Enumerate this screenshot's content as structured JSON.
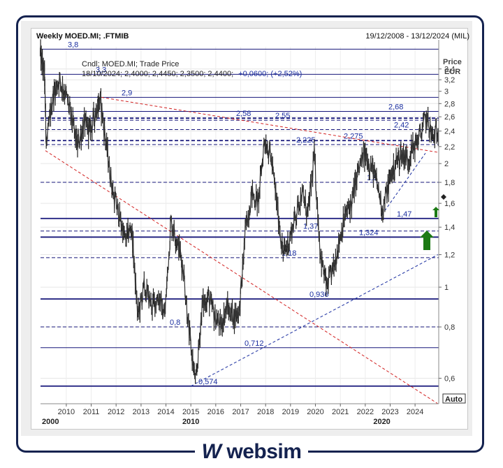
{
  "header": {
    "title": "Weekly MOED.MI; .FTMIB",
    "date_range": "19/12/2008 - 13/12/2024 (MIL)"
  },
  "info": {
    "line1": "Cndl; MOED.MI; Trade Price",
    "line2_prefix": "18/10/2024; 2,4000; 2,4450; 2,3500; 2,4400;",
    "line2_change": "+0,0600; (+2,52%)"
  },
  "axis": {
    "price_label": "Price",
    "currency_label": "EUR",
    "auto_label": "Auto",
    "y_ticks": [
      "0,6",
      "0,8",
      "1",
      "1,2",
      "1,4",
      "1,6",
      "1,8",
      "2",
      "2,2",
      "2,4",
      "2,6",
      "2,8",
      "3",
      "3,2",
      "3,4"
    ],
    "x_ticks": [
      "2010",
      "2011",
      "2012",
      "2013",
      "2014",
      "2015",
      "2016",
      "2017",
      "2018",
      "2019",
      "2020",
      "2021",
      "2022",
      "2023",
      "2024"
    ],
    "decades": [
      "2000",
      "2010",
      "2020"
    ]
  },
  "branding": {
    "logo_text": "websim",
    "logo_mark": "W"
  },
  "chart_data": {
    "type": "line",
    "ylim": [
      0.52,
      3.85
    ],
    "y_scale": "log",
    "xlim": [
      "2008-12-19",
      "2024-12-13"
    ],
    "grid": true,
    "levels": [
      {
        "label": "3,8",
        "value": 3.8,
        "style": "solid"
      },
      {
        "label": "3,3",
        "value": 3.3,
        "style": "solid"
      },
      {
        "label": "2,9",
        "value": 2.9,
        "style": "solid"
      },
      {
        "label": "2,68",
        "value": 2.68,
        "style": "solid"
      },
      {
        "label": "2,58",
        "value": 2.58,
        "style": "dashed-bold"
      },
      {
        "label": "2,55",
        "value": 2.55,
        "style": "dashed"
      },
      {
        "label": "2,42",
        "value": 2.42,
        "style": "dashed"
      },
      {
        "label": "2,275",
        "value": 2.275,
        "style": "dashed-bold"
      },
      {
        "label": "2,225",
        "value": 2.225,
        "style": "dashed"
      },
      {
        "label": "1,8",
        "value": 1.8,
        "style": "dashed"
      },
      {
        "label": "1,47",
        "value": 1.47,
        "style": "solid-bold"
      },
      {
        "label": "1,37",
        "value": 1.37,
        "style": "dashed"
      },
      {
        "label": "1,324",
        "value": 1.324,
        "style": "solid-bold"
      },
      {
        "label": "1,18",
        "value": 1.18,
        "style": "dashed"
      },
      {
        "label": "0,936",
        "value": 0.936,
        "style": "solid-bold"
      },
      {
        "label": "0,8",
        "value": 0.8,
        "style": "dashed"
      },
      {
        "label": "0,712",
        "value": 0.712,
        "style": "solid"
      },
      {
        "label": "0,574",
        "value": 0.574,
        "style": "solid-bold"
      }
    ],
    "trendlines": [
      {
        "color": "red",
        "from": [
          "2009-03",
          2.15
        ],
        "to": [
          "2024-12",
          0.52
        ]
      },
      {
        "color": "red",
        "from": [
          "2011-06",
          2.9
        ],
        "to": [
          "2024-12",
          2.13
        ]
      },
      {
        "color": "navy",
        "from": [
          "2015-01",
          0.574
        ],
        "to": [
          "2024-12",
          1.2
        ]
      },
      {
        "color": "navy",
        "from": [
          "2022-09",
          1.5
        ],
        "to": [
          "2024-06",
          2.12
        ]
      }
    ],
    "series": [
      {
        "values": [
          [
            "2008-12",
            3.7
          ],
          [
            "2009-02",
            3.3
          ],
          [
            "2009-03",
            2.2
          ],
          [
            "2009-06",
            2.9
          ],
          [
            "2009-09",
            3.2
          ],
          [
            "2009-12",
            3.0
          ],
          [
            "2010-03",
            2.6
          ],
          [
            "2010-06",
            2.2
          ],
          [
            "2010-09",
            2.5
          ],
          [
            "2010-12",
            2.4
          ],
          [
            "2011-03",
            2.7
          ],
          [
            "2011-05",
            2.85
          ],
          [
            "2011-08",
            2.2
          ],
          [
            "2011-11",
            1.7
          ],
          [
            "2012-02",
            1.5
          ],
          [
            "2012-05",
            1.3
          ],
          [
            "2012-08",
            1.4
          ],
          [
            "2012-11",
            0.85
          ],
          [
            "2013-02",
            1.0
          ],
          [
            "2013-06",
            0.9
          ],
          [
            "2013-09",
            0.95
          ],
          [
            "2013-12",
            0.85
          ],
          [
            "2014-03",
            1.45
          ],
          [
            "2014-06",
            1.3
          ],
          [
            "2014-09",
            1.1
          ],
          [
            "2014-12",
            0.75
          ],
          [
            "2015-03",
            0.58
          ],
          [
            "2015-06",
            0.9
          ],
          [
            "2015-09",
            0.95
          ],
          [
            "2015-12",
            0.85
          ],
          [
            "2016-03",
            0.8
          ],
          [
            "2016-06",
            0.9
          ],
          [
            "2016-09",
            0.85
          ],
          [
            "2016-12",
            0.88
          ],
          [
            "2017-03",
            1.4
          ],
          [
            "2017-06",
            1.7
          ],
          [
            "2017-09",
            1.6
          ],
          [
            "2017-12",
            2.3
          ],
          [
            "2018-03",
            2.1
          ],
          [
            "2018-06",
            1.6
          ],
          [
            "2018-09",
            1.2
          ],
          [
            "2018-12",
            1.3
          ],
          [
            "2019-03",
            1.5
          ],
          [
            "2019-06",
            1.7
          ],
          [
            "2019-09",
            1.5
          ],
          [
            "2019-12",
            2.1
          ],
          [
            "2020-03",
            1.2
          ],
          [
            "2020-06",
            1.0
          ],
          [
            "2020-09",
            1.1
          ],
          [
            "2020-12",
            1.3
          ],
          [
            "2021-03",
            1.5
          ],
          [
            "2021-06",
            1.6
          ],
          [
            "2021-09",
            1.9
          ],
          [
            "2021-12",
            2.1
          ],
          [
            "2022-03",
            2.0
          ],
          [
            "2022-06",
            1.8
          ],
          [
            "2022-09",
            1.55
          ],
          [
            "2022-12",
            1.8
          ],
          [
            "2023-03",
            2.0
          ],
          [
            "2023-06",
            2.1
          ],
          [
            "2023-09",
            2.05
          ],
          [
            "2023-12",
            2.2
          ],
          [
            "2024-03",
            2.35
          ],
          [
            "2024-06",
            2.6
          ],
          [
            "2024-09",
            2.3
          ],
          [
            "2024-12",
            2.44
          ]
        ]
      }
    ]
  }
}
